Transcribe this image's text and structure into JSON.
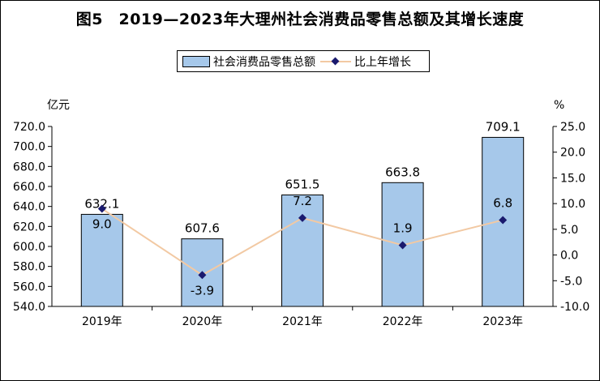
{
  "title": "图5　2019—2023年大理州社会消费品零售总额及其增长速度",
  "legend": {
    "bar_label": "社会消费品零售总额",
    "line_label": "比上年增长"
  },
  "colors": {
    "bar": "#a6c8ea",
    "line": "#f2c9a3",
    "marker": "#1a1a6e"
  },
  "chart_data": {
    "type": "bar",
    "title": "图5　2019—2023年大理州社会消费品零售总额及其增长速度",
    "categories": [
      "2019年",
      "2020年",
      "2021年",
      "2022年",
      "2023年"
    ],
    "series": [
      {
        "name": "社会消费品零售总额",
        "type": "bar",
        "axis": "left",
        "values": [
          632.1,
          607.6,
          651.5,
          663.8,
          709.1
        ]
      },
      {
        "name": "比上年增长",
        "type": "line",
        "axis": "right",
        "values": [
          9.0,
          -3.9,
          7.2,
          1.9,
          6.8
        ]
      }
    ],
    "ylabel_left": "亿元",
    "ylabel_right": "%",
    "ylim_left": [
      540,
      720
    ],
    "ylim_right": [
      -10,
      25
    ],
    "yticks_left": [
      "720.0",
      "700.0",
      "680.0",
      "660.0",
      "640.0",
      "620.0",
      "600.0",
      "580.0",
      "560.0",
      "540.0"
    ],
    "yticks_right": [
      "25.0",
      "20.0",
      "15.0",
      "10.0",
      "5.0",
      "0.0",
      "-5.0",
      "-10.0"
    ],
    "bar_labels": [
      "632.1",
      "607.6",
      "651.5",
      "663.8",
      "709.1"
    ],
    "line_labels": [
      "9.0",
      "-3.9",
      "7.2",
      "1.9",
      "6.8"
    ],
    "legend_position": "top"
  }
}
